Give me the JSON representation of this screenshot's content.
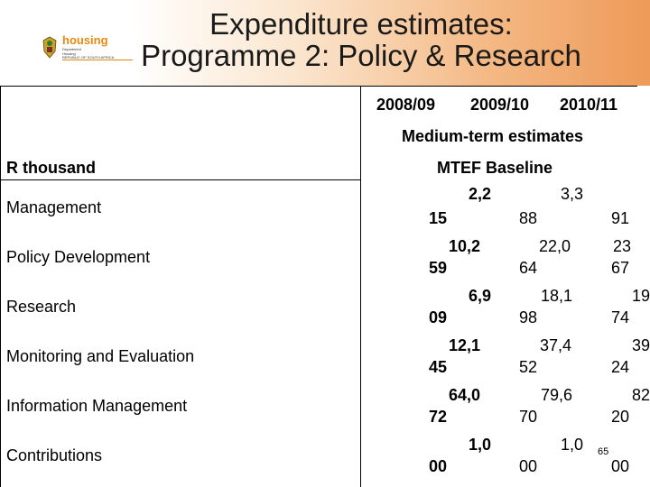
{
  "title": {
    "line1": "Expenditure estimates:",
    "line2": "Programme 2: Policy & Research"
  },
  "logo": {
    "name": "housing",
    "dept_lines": [
      "Department",
      "Housing",
      "REPUBLIC OF SOUTH AFRICA"
    ],
    "icon": "coat-of-arms-icon"
  },
  "table": {
    "year_headers": [
      "2008/09",
      "2009/10",
      "2010/11"
    ],
    "medium_term": "Medium-term estimates",
    "unit_label": "R thousand",
    "baseline_label": "MTEF Baseline",
    "rows": [
      {
        "label": "Management",
        "cells": [
          [
            "2,2",
            "15"
          ],
          [
            "3,3",
            "88"
          ],
          [
            "",
            "91"
          ]
        ]
      },
      {
        "label": "Policy Development",
        "cells": [
          [
            "10,2",
            "59"
          ],
          [
            "22,0",
            "64"
          ],
          [
            "23",
            "67"
          ]
        ]
      },
      {
        "label": "Research",
        "cells": [
          [
            "6,9",
            "09"
          ],
          [
            "18,1",
            "98"
          ],
          [
            "19",
            "74"
          ]
        ]
      },
      {
        "label": "Monitoring and Evaluation",
        "cells": [
          [
            "12,1",
            "45"
          ],
          [
            "37,4",
            "52"
          ],
          [
            "39",
            "24"
          ]
        ]
      },
      {
        "label": "Information Management",
        "cells": [
          [
            "64,0",
            "72"
          ],
          [
            "79,6",
            "70"
          ],
          [
            "82",
            "20"
          ]
        ]
      },
      {
        "label": "Contributions",
        "cells": [
          [
            "1,0",
            "00"
          ],
          [
            "1,0",
            "00"
          ],
          [
            "",
            "00"
          ]
        ]
      }
    ]
  },
  "page_number": "65",
  "colors": {
    "logo_accent": "#e28a12",
    "header_gradient_end": "#ee9a58"
  }
}
